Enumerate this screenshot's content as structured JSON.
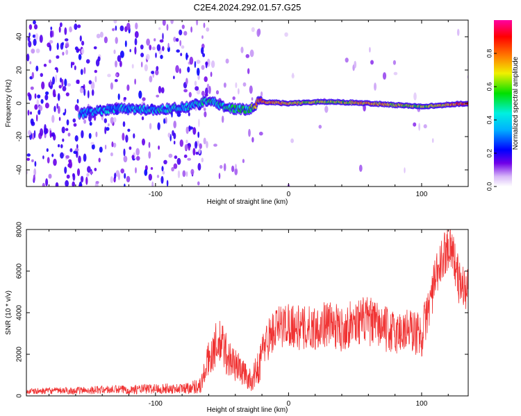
{
  "figure": {
    "title": "C2E4.2024.292.01.57.G25"
  },
  "colors": {
    "snr_line": "#f03232",
    "axis": "#000000"
  },
  "chart_data": [
    {
      "type": "heatmap",
      "xlabel": "Height of straight line (km)",
      "ylabel": "Frequency (Hz)",
      "xlim": [
        -197,
        135
      ],
      "ylim": [
        -50,
        50
      ],
      "xticks": [
        -100,
        0,
        100
      ],
      "yticks": [
        -40,
        -20,
        0,
        20,
        40
      ],
      "colorbar": {
        "label": "Normalized spectral amplitude",
        "range": [
          0,
          1
        ],
        "ticks": [
          "0.0",
          "0.2",
          "0.4",
          "0.6",
          "0.8"
        ],
        "colormap": [
          "#ffffff",
          "#d8b8f8",
          "#7000e8",
          "#0000ff",
          "#00b0ff",
          "#00f0e0",
          "#00e000",
          "#f0f000",
          "#ff8000",
          "#ff0000",
          "#ff00a0"
        ]
      },
      "ridge": [
        {
          "x": -155,
          "freq": -6,
          "amp": 0.35
        },
        {
          "x": -130,
          "freq": -3,
          "amp": 0.35
        },
        {
          "x": -100,
          "freq": -4,
          "amp": 0.4
        },
        {
          "x": -75,
          "freq": -2,
          "amp": 0.4
        },
        {
          "x": -60,
          "freq": 2,
          "amp": 0.45
        },
        {
          "x": -45,
          "freq": -3,
          "amp": 0.45
        },
        {
          "x": -30,
          "freq": -4,
          "amp": 0.5
        },
        {
          "x": -22,
          "freq": 1,
          "amp": 0.8
        },
        {
          "x": 0,
          "freq": 0,
          "amp": 0.7
        },
        {
          "x": 30,
          "freq": 1,
          "amp": 0.6
        },
        {
          "x": 60,
          "freq": 0,
          "amp": 0.75
        },
        {
          "x": 100,
          "freq": -2,
          "amp": 0.6
        },
        {
          "x": 135,
          "freq": 0,
          "amp": 0.85
        }
      ]
    },
    {
      "type": "line",
      "xlabel": "Height of straight line (km)",
      "ylabel": "SNR (10 * v/v)",
      "xlim": [
        -197,
        135
      ],
      "ylim": [
        0,
        8000
      ],
      "xticks": [
        -100,
        0,
        100
      ],
      "yticks": [
        0,
        2000,
        4000,
        6000,
        8000
      ],
      "series": [
        {
          "x": [
            -197,
            -180,
            -160,
            -140,
            -120,
            -100,
            -80,
            -66,
            -60,
            -55,
            -50,
            -45,
            -40,
            -35,
            -28,
            -22,
            -18,
            -10,
            0,
            10,
            20,
            30,
            40,
            50,
            60,
            70,
            80,
            90,
            100,
            110,
            118,
            122,
            128,
            135
          ],
          "y": [
            200,
            250,
            250,
            300,
            300,
            350,
            350,
            500,
            1800,
            2400,
            2500,
            1800,
            1500,
            1200,
            700,
            1500,
            2500,
            3200,
            3500,
            3200,
            3300,
            3500,
            3200,
            3600,
            3600,
            3300,
            3000,
            3200,
            2900,
            5500,
            7000,
            7300,
            5500,
            5000
          ],
          "spread": [
            150,
            150,
            180,
            200,
            220,
            250,
            250,
            400,
            900,
            1100,
            1200,
            1000,
            800,
            700,
            500,
            900,
            1000,
            1100,
            1100,
            1100,
            1100,
            1100,
            1100,
            1100,
            1200,
            1100,
            1100,
            1100,
            1100,
            1100,
            1100,
            1100,
            1100,
            1100
          ]
        }
      ]
    }
  ]
}
